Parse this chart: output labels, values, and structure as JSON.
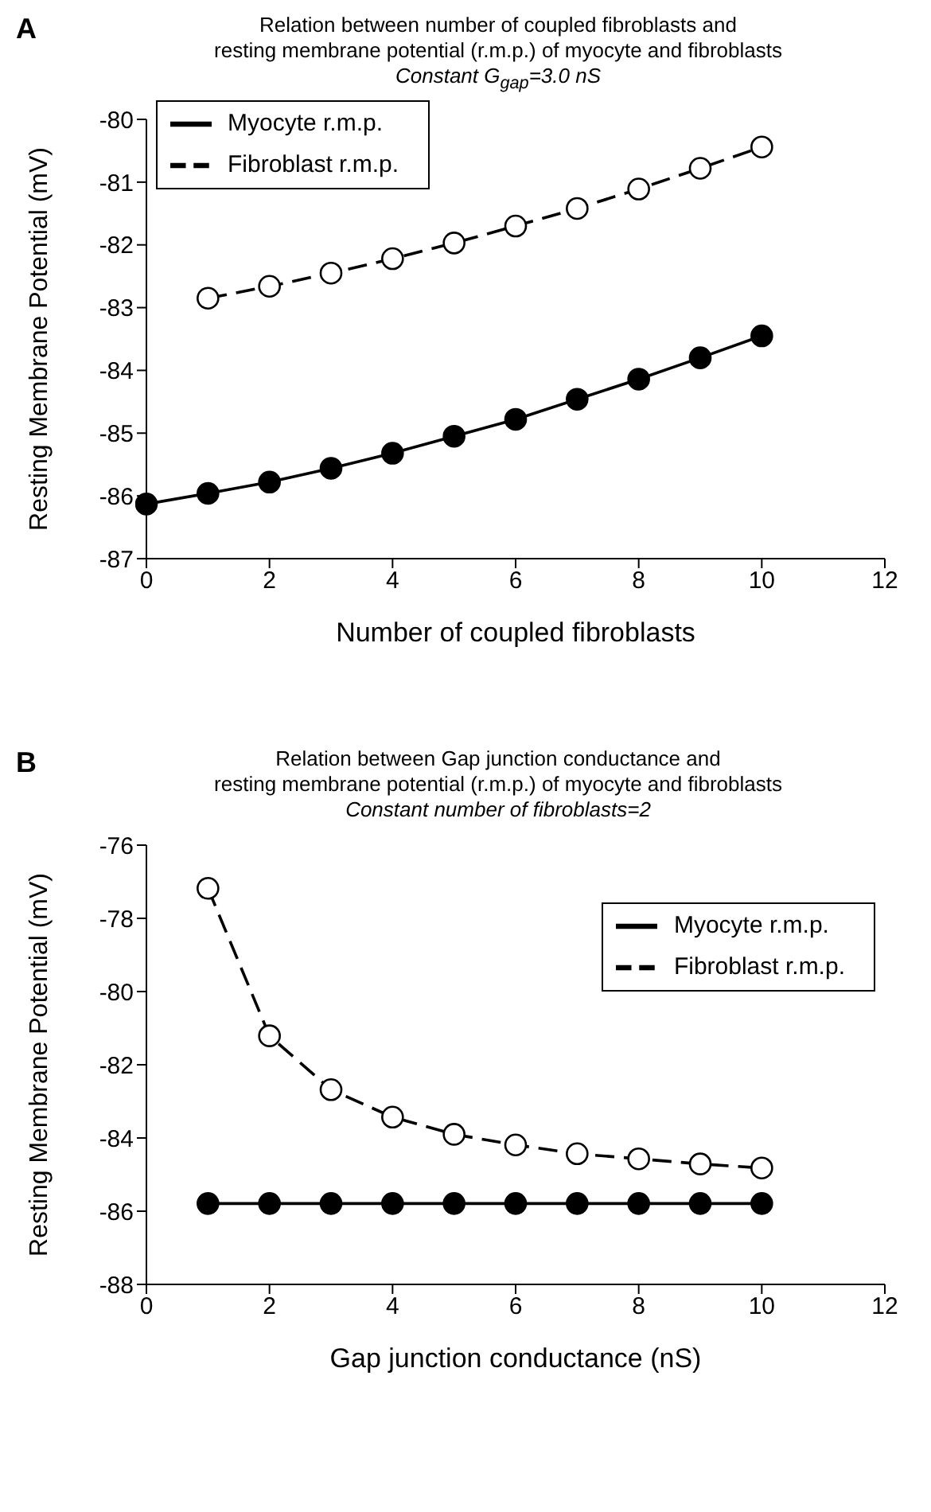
{
  "chart_data": [
    {
      "type": "line",
      "title": "Relation between number of coupled fibroblasts and\nresting membrane potential (r.m.p.) of myocyte and fibroblasts",
      "subtitle": "Constant G$_{gap}$=3.0 nS",
      "annotations": [
        "A"
      ],
      "xlabel": "Number of coupled fibroblasts",
      "ylabel": "Resting Membrane Potential (mV)",
      "xlim": [
        0,
        12
      ],
      "xticks": [
        0,
        2,
        4,
        6,
        8,
        10,
        12
      ],
      "ylim": [
        -87,
        -80
      ],
      "yticks": [
        -87,
        -86,
        -85,
        -84,
        -83,
        -82,
        -81,
        -80
      ],
      "grid": false,
      "legend": "top left",
      "marker": "circle",
      "series": [
        {
          "name": "Myocyte r.m.p.",
          "color": "#000000",
          "line_style": "solid",
          "x": [
            0,
            1,
            2,
            3,
            4,
            5,
            6,
            7,
            8,
            9,
            10
          ],
          "values": [
            -86.13,
            -85.96,
            -85.78,
            -85.56,
            -85.32,
            -85.05,
            -84.78,
            -84.46,
            -84.14,
            -83.8,
            -83.45
          ]
        },
        {
          "name": "Fibroblast r.m.p.",
          "color": "#000000",
          "line_style": "dashed",
          "x": [
            1,
            2,
            3,
            4,
            5,
            6,
            7,
            8,
            9,
            10
          ],
          "values": [
            -82.85,
            -82.66,
            -82.45,
            -82.22,
            -81.97,
            -81.7,
            -81.42,
            -81.11,
            -80.78,
            -80.44
          ]
        }
      ]
    },
    {
      "type": "line",
      "title": "Relation between Gap junction conductance and\nresting membrane potential (r.m.p.) of myocyte and fibroblasts",
      "subtitle": "Constant number of fibroblasts=2",
      "annotations": [
        "B"
      ],
      "xlabel": "Gap junction conductance (nS)",
      "ylabel": "Resting Membrane Potential (mV)",
      "xlim": [
        0,
        12
      ],
      "xticks": [
        0,
        2,
        4,
        6,
        8,
        10,
        12
      ],
      "ylim": [
        -88,
        -76
      ],
      "yticks": [
        -88,
        -86,
        -84,
        -82,
        -80,
        -78,
        -76
      ],
      "grid": false,
      "legend": "top right",
      "marker": "circle",
      "series": [
        {
          "name": "Myocyte r.m.p.",
          "color": "#000000",
          "line_style": "solid",
          "x": [
            1,
            2,
            3,
            4,
            5,
            6,
            7,
            8,
            9,
            10
          ],
          "values": [
            -85.79,
            -85.79,
            -85.79,
            -85.79,
            -85.79,
            -85.79,
            -85.79,
            -85.79,
            -85.79,
            -85.79
          ]
        },
        {
          "name": "Fibroblast r.m.p.",
          "color": "#000000",
          "line_style": "dashed",
          "x": [
            1,
            2,
            3,
            4,
            5,
            6,
            7,
            8,
            9,
            10
          ],
          "values": [
            -77.18,
            -81.21,
            -82.68,
            -83.43,
            -83.9,
            -84.19,
            -84.43,
            -84.57,
            -84.71,
            -84.82
          ]
        }
      ]
    }
  ]
}
